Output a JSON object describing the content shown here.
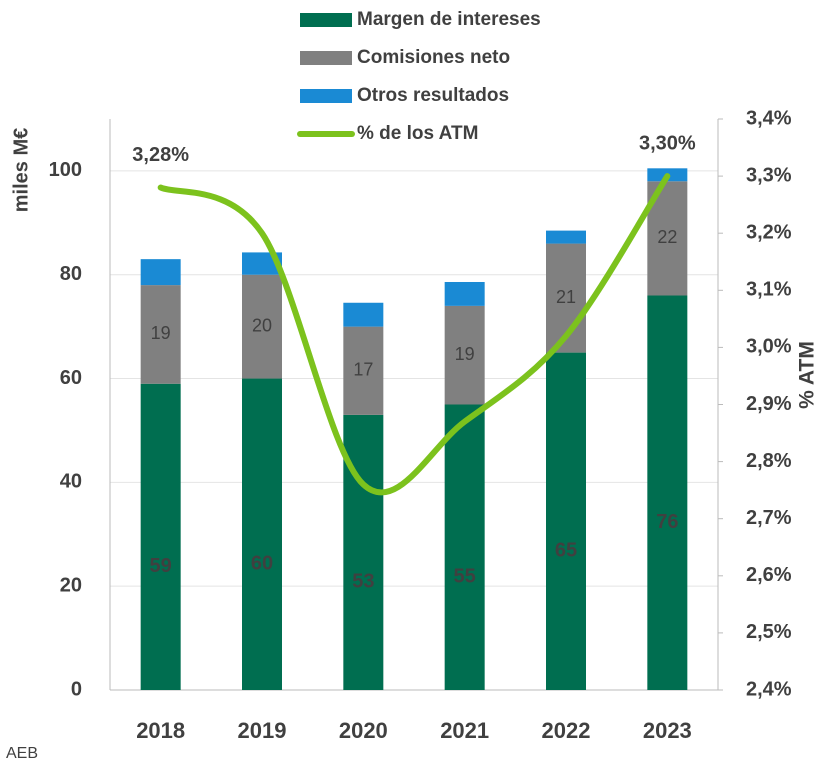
{
  "chart_data": {
    "type": "bar",
    "stacked": true,
    "categories": [
      "2018",
      "2019",
      "2020",
      "2021",
      "2022",
      "2023"
    ],
    "series": [
      {
        "name": "Margen de intereses",
        "color": "#006e50",
        "values": [
          59,
          60,
          53,
          55,
          65,
          76
        ]
      },
      {
        "name": "Comisiones neto",
        "color": "#808080",
        "values": [
          19,
          20,
          17,
          19,
          21,
          22
        ]
      },
      {
        "name": "Otros resultados",
        "color": "#1a8ad4",
        "values": [
          5,
          4.3,
          4.6,
          4.6,
          2.5,
          2.5
        ]
      },
      {
        "name": "% de los ATM",
        "color": "#7cc21d",
        "type": "line",
        "axis": "y2",
        "values": [
          3.28,
          3.2,
          2.76,
          2.87,
          3.02,
          3.3
        ],
        "value_labels": [
          "3,28%",
          null,
          null,
          null,
          null,
          "3,30%"
        ]
      }
    ],
    "ylabel": "miles M€",
    "y2label": "% ATM",
    "ylim": [
      0,
      110
    ],
    "yticks": [
      0,
      20,
      40,
      60,
      80,
      100
    ],
    "y2lim": [
      2.4,
      3.4
    ],
    "y2ticks": [
      {
        "value": 2.4,
        "label": "2,4%"
      },
      {
        "value": 2.5,
        "label": "2,5%"
      },
      {
        "value": 2.6,
        "label": "2,6%"
      },
      {
        "value": 2.7,
        "label": "2,7%"
      },
      {
        "value": 2.8,
        "label": "2,8%"
      },
      {
        "value": 2.9,
        "label": "2,9%"
      },
      {
        "value": 3.0,
        "label": "3,0%"
      },
      {
        "value": 3.1,
        "label": "3,1%"
      },
      {
        "value": 3.2,
        "label": "3,2%"
      },
      {
        "value": 3.3,
        "label": "3,3%"
      },
      {
        "value": 3.4,
        "label": "3,4%"
      }
    ],
    "grid": true,
    "legend": "top",
    "source": "AEB"
  }
}
